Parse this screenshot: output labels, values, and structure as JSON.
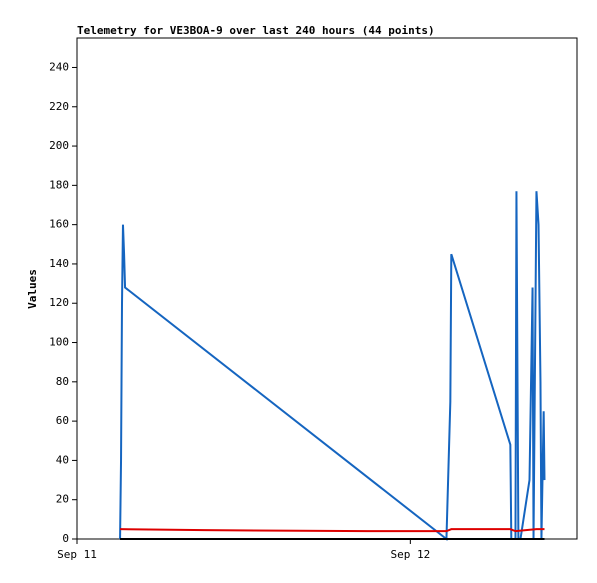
{
  "chart_data": {
    "type": "line",
    "title": "Telemetry for VE3BOA-9 over last 240 hours (44 points)",
    "y_label": "Values",
    "xlim": [
      0,
      36
    ],
    "xticks": [
      {
        "value": 0,
        "label": "Sep 11"
      },
      {
        "value": 24,
        "label": "Sep 12"
      }
    ],
    "ylim": [
      0,
      255
    ],
    "yticks": [
      0,
      20,
      40,
      60,
      80,
      100,
      120,
      140,
      160,
      180,
      200,
      220,
      240
    ],
    "grid": false,
    "series": [
      {
        "color": "#1565c0",
        "x": [
          3.1,
          3.17,
          3.24,
          3.31,
          3.39,
          3.46,
          26.6,
          26.88,
          26.95,
          31.2,
          31.27,
          31.57,
          31.64,
          31.78,
          31.93,
          32.58,
          32.8,
          32.87,
          33.08,
          33.23,
          33.37,
          33.44,
          33.6,
          33.66
        ],
        "values": [
          0,
          40,
          120,
          160,
          145,
          128,
          0,
          70,
          145,
          48,
          0,
          0,
          177,
          0,
          0,
          30,
          128,
          0,
          177,
          160,
          80,
          0,
          65,
          30
        ]
      },
      {
        "color": "#dd0000",
        "x": [
          3.1,
          9.2,
          20.9,
          26.6,
          26.95,
          31.2,
          31.57,
          33.08,
          33.66
        ],
        "values": [
          5,
          4.5,
          4,
          4,
          5,
          5,
          4,
          5,
          5
        ]
      },
      {
        "color": "#000000",
        "x": [
          3.1,
          33.66
        ],
        "values": [
          0,
          0
        ]
      }
    ]
  }
}
